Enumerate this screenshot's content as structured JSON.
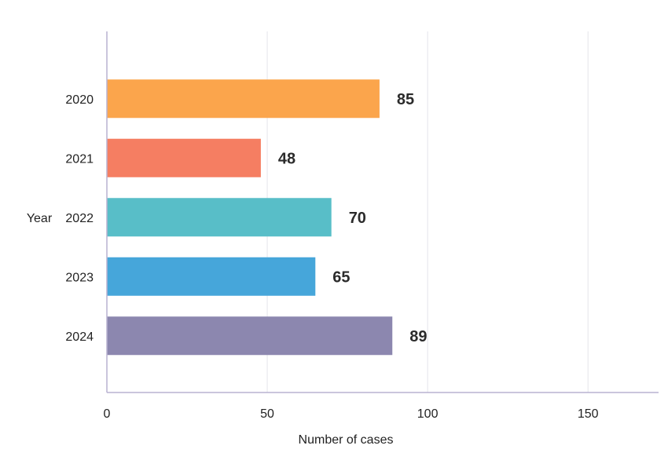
{
  "chart_data": {
    "type": "bar",
    "orientation": "horizontal",
    "categories": [
      "2020",
      "2021",
      "2022",
      "2023",
      "2024"
    ],
    "values": [
      85,
      48,
      70,
      65,
      89
    ],
    "bar_colors": [
      "#FBA54C",
      "#F57E62",
      "#58BEC8",
      "#46A6DA",
      "#8C87AF"
    ],
    "xlabel": "Number of cases",
    "ylabel": "Year",
    "xlim": [
      0,
      172
    ],
    "xticks": [
      0,
      50,
      100,
      150
    ],
    "xtick_labels": [
      "0",
      "50",
      "100",
      "150"
    ],
    "grid": "vertical",
    "data_labels": [
      "85",
      "48",
      "70",
      "65",
      "89"
    ]
  }
}
